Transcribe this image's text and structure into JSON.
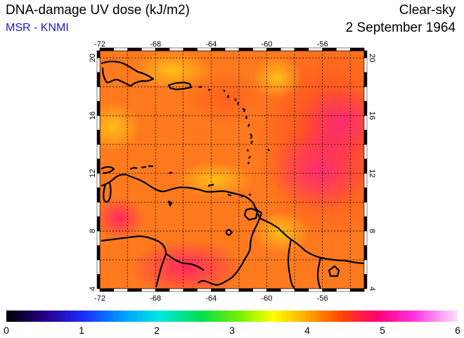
{
  "header": {
    "title": "DNA-damage UV dose (kJ/m2)",
    "source": "MSR - KNMI",
    "condition": "Clear-sky",
    "date": "2 September 1964"
  },
  "map": {
    "lon_range": [
      -72,
      -53
    ],
    "lat_range": [
      4,
      20.5
    ],
    "lon_ticks": [
      -72,
      -68,
      -64,
      -60,
      -56
    ],
    "lat_ticks": [
      4,
      8,
      12,
      16,
      20
    ],
    "lon_tick_labels": [
      "-72",
      "-68",
      "-64",
      "-60",
      "-56"
    ],
    "lat_tick_labels": [
      "4",
      "8",
      "12",
      "16",
      "20"
    ],
    "gridlines": true,
    "base_color": "#ff7a1e"
  },
  "colorbar": {
    "min": 0,
    "max": 6,
    "labels": [
      "0",
      "1",
      "2",
      "3",
      "4",
      "5",
      "6"
    ],
    "stops": [
      "#000000",
      "#3a00c8",
      "#0050ff",
      "#00d8ff",
      "#00e060",
      "#9cff00",
      "#ffff00",
      "#ffa000",
      "#ff3000",
      "#ff0090",
      "#ff40ff",
      "#ffc8ff"
    ]
  }
}
